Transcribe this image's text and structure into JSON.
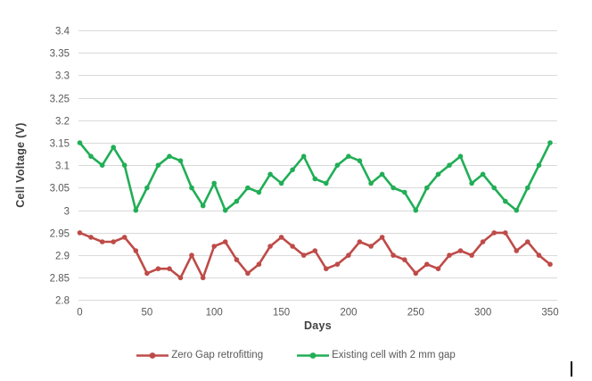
{
  "chart_data": {
    "type": "line",
    "title": "",
    "xlabel": "Days",
    "ylabel": "Cell Voltage (V)",
    "ylim": [
      2.8,
      3.4
    ],
    "ytick_step": 0.05,
    "xticks": [
      0,
      50,
      100,
      150,
      200,
      250,
      300,
      350
    ],
    "xlim": [
      0,
      350
    ],
    "grid": "horizontal",
    "legend_position": "bottom-center",
    "marker": "circle",
    "x": [
      0,
      8.3,
      16.7,
      25,
      33.3,
      41.7,
      50,
      58.3,
      66.7,
      75,
      83.3,
      91.7,
      100,
      108.3,
      116.7,
      125,
      133.3,
      141.7,
      150,
      158.3,
      166.7,
      175,
      183.3,
      191.7,
      200,
      208.3,
      216.7,
      225,
      233.3,
      241.7,
      250,
      258.3,
      266.7,
      275,
      283.3,
      291.7,
      300,
      308.3,
      316.7,
      325,
      333.3,
      341.7,
      350
    ],
    "series": [
      {
        "name": "Zero Gap retrofitting",
        "color": "#BE4B48",
        "values": [
          2.95,
          2.94,
          2.93,
          2.93,
          2.94,
          2.91,
          2.86,
          2.87,
          2.87,
          2.85,
          2.9,
          2.85,
          2.92,
          2.93,
          2.89,
          2.86,
          2.88,
          2.92,
          2.94,
          2.92,
          2.9,
          2.91,
          2.87,
          2.88,
          2.9,
          2.93,
          2.92,
          2.94,
          2.9,
          2.89,
          2.86,
          2.88,
          2.87,
          2.9,
          2.91,
          2.9,
          2.93,
          2.95,
          2.95,
          2.91,
          2.93,
          2.9,
          2.88
        ]
      },
      {
        "name": "Existing cell with 2 mm gap",
        "color": "#21AE56",
        "values": [
          3.15,
          3.12,
          3.1,
          3.14,
          3.1,
          3.0,
          3.05,
          3.1,
          3.12,
          3.11,
          3.05,
          3.01,
          3.06,
          3.0,
          3.02,
          3.05,
          3.04,
          3.08,
          3.06,
          3.09,
          3.12,
          3.07,
          3.06,
          3.1,
          3.12,
          3.11,
          3.06,
          3.08,
          3.05,
          3.04,
          3.0,
          3.05,
          3.08,
          3.1,
          3.12,
          3.06,
          3.08,
          3.05,
          3.02,
          3.0,
          3.05,
          3.1,
          3.15
        ]
      }
    ]
  },
  "colors": {
    "gridline": "#D9D9D9",
    "tick_label": "#595959",
    "axis_title": "#404040",
    "background": "#FFFFFF",
    "cursor": "#000000"
  }
}
